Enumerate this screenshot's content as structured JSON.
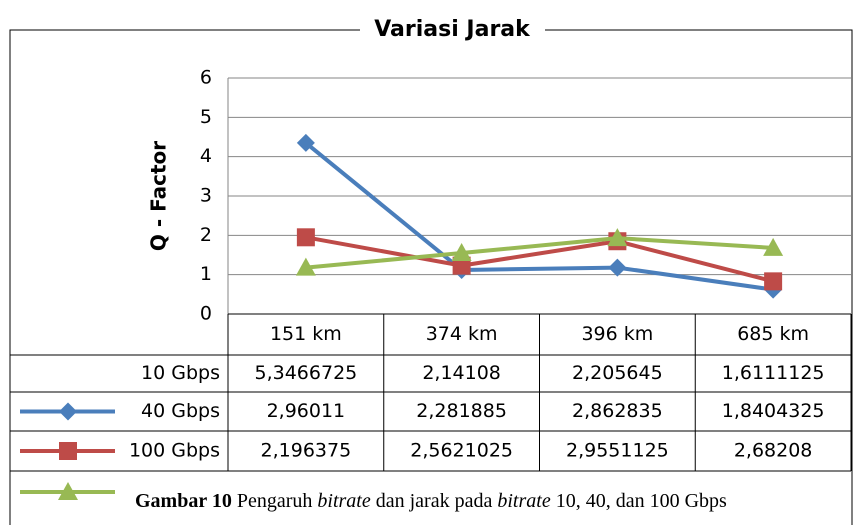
{
  "chart_data": {
    "type": "line",
    "title": "Variasi Jarak",
    "y_label": "Q - Factor",
    "categories": [
      "151 km",
      "374 km",
      "396 km",
      "685 km"
    ],
    "ylim": [
      0,
      6
    ],
    "yticks": [
      0,
      1,
      2,
      3,
      4,
      5,
      6
    ],
    "grid": true,
    "series": [
      {
        "name": "10 Gbps",
        "color": "#4a7ebb",
        "marker": "diamond",
        "values": [
          4.35,
          1.12,
          1.18,
          0.62
        ],
        "table_values": [
          "5,3466725",
          "2,14108",
          "2,205645",
          "1,6111125"
        ]
      },
      {
        "name": "40 Gbps",
        "color": "#be4b48",
        "marker": "square",
        "values": [
          1.95,
          1.23,
          1.85,
          0.83
        ],
        "table_values": [
          "2,96011",
          "2,281885",
          "2,862835",
          "1,8404325"
        ]
      },
      {
        "name": "100 Gbps",
        "color": "#98b954",
        "marker": "triangle",
        "values": [
          1.18,
          1.55,
          1.93,
          1.68
        ],
        "table_values": [
          "2,196375",
          "2,5621025",
          "2,9551125",
          "2,68208"
        ]
      }
    ]
  },
  "caption": {
    "label": "Gambar 10",
    "parts": [
      " Pengaruh ",
      "bitrate",
      " dan jarak pada ",
      "bitrate",
      " 10, 40, dan 100 Gbps"
    ]
  }
}
